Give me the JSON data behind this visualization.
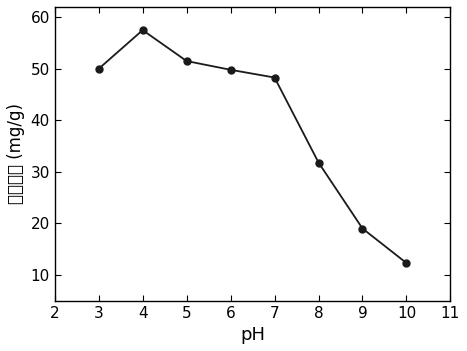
{
  "x": [
    3,
    4,
    5,
    6,
    7,
    8,
    9,
    10
  ],
  "y": [
    50.0,
    57.5,
    51.5,
    49.8,
    48.3,
    31.8,
    19.0,
    12.3
  ],
  "xlabel": "pH",
  "ylabel": "吸附容量 (mg/g)",
  "xlim": [
    2,
    11
  ],
  "ylim": [
    5,
    62
  ],
  "xticks": [
    2,
    3,
    4,
    5,
    6,
    7,
    8,
    9,
    10,
    11
  ],
  "yticks": [
    10,
    20,
    30,
    40,
    50,
    60
  ],
  "line_color": "#1a1a1a",
  "marker": "o",
  "marker_size": 5,
  "marker_facecolor": "#1a1a1a",
  "marker_edgecolor": "#1a1a1a",
  "linewidth": 1.3,
  "background_color": "#ffffff",
  "xlabel_fontsize": 13,
  "ylabel_fontsize": 12,
  "tick_fontsize": 11
}
